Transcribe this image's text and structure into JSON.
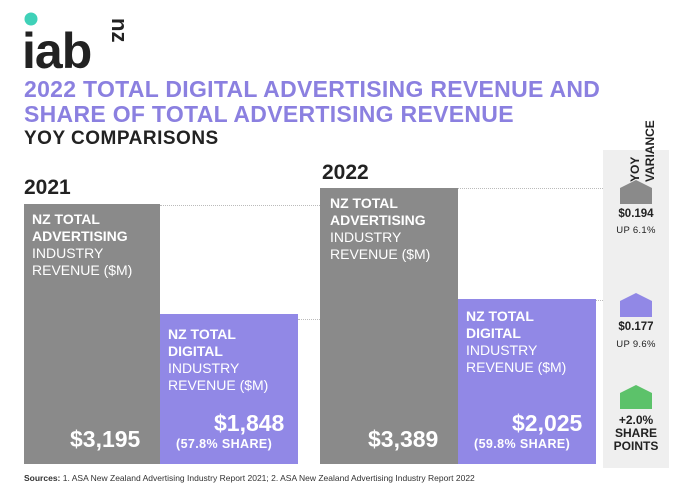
{
  "logo": {
    "text": "iab",
    "suffix": "nz",
    "accent": "#3fd1b8"
  },
  "header": {
    "title_line1": "2022 TOTAL DIGITAL ADVERTISING REVENUE AND",
    "title_line2": "SHARE OF TOTAL ADVERTISING REVENUE",
    "subtitle": "YOY COMPARISONS"
  },
  "colors": {
    "total": "#8a8a8a",
    "digital": "#9188e6",
    "variance_up": "#5cc26a",
    "title": "#8b80e0"
  },
  "chart_data": {
    "type": "bar",
    "categories": [
      "2021",
      "2022"
    ],
    "series": [
      {
        "label_line1": "NZ TOTAL",
        "label_line2": "ADVERTISING",
        "label_line3": "INDUSTRY",
        "label_line4": "REVENUE ($M)",
        "values": [
          3195,
          3389
        ],
        "value_labels": [
          "$3,195",
          "$3,389"
        ]
      },
      {
        "label_line1": "NZ TOTAL",
        "label_line2": "DIGITAL",
        "label_line3": "INDUSTRY",
        "label_line4": "REVENUE ($M)",
        "values": [
          1848,
          2025
        ],
        "value_labels": [
          "$1,848",
          "$2,025"
        ],
        "share_labels": [
          "(57.8% SHARE)",
          "(59.8% SHARE)"
        ],
        "share_pct": [
          57.8,
          59.8
        ]
      }
    ],
    "yoy_variance": {
      "header_line1": "YOY",
      "header_line2": "VARIANCE",
      "total": {
        "value": "$0.194",
        "pct": "UP 6.1%"
      },
      "digital": {
        "value": "$0.177",
        "pct": "UP 9.6%"
      },
      "share": {
        "value": "+2.0%",
        "line2": "SHARE",
        "line3": "POINTS"
      }
    }
  },
  "sources": {
    "label": "Sources:",
    "text": "1. ASA New Zealand Advertising Industry Report 2021;  2. ASA New Zealand Advertising Industry Report 2022"
  }
}
